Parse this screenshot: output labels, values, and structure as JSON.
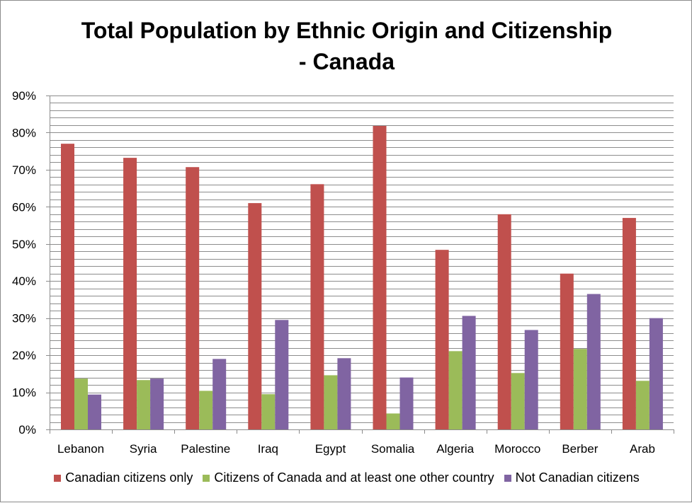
{
  "chart_data": {
    "type": "bar",
    "title_line1": "Total Population by Ethnic Origin and Citizenship",
    "title_line2": "- Canada",
    "categories": [
      "Lebanon",
      "Syria",
      "Palestine",
      "Iraq",
      "Egypt",
      "Somalia",
      "Algeria",
      "Morocco",
      "Berber",
      "Arab"
    ],
    "series": [
      {
        "name": "Canadian citizens only",
        "color": "#c0504d",
        "values": [
          77.0,
          73.2,
          70.7,
          61.0,
          66.1,
          81.8,
          48.4,
          58.0,
          42.0,
          57.0
        ]
      },
      {
        "name": "Citizens of Canada and at least one other country",
        "color": "#9bbb59",
        "values": [
          13.7,
          13.3,
          10.4,
          9.5,
          14.6,
          4.3,
          21.1,
          15.2,
          21.7,
          13.1
        ]
      },
      {
        "name": "Not Canadian citizens",
        "color": "#8064a2",
        "values": [
          9.4,
          13.7,
          19.0,
          29.5,
          19.2,
          14.0,
          30.6,
          26.8,
          36.5,
          30.0
        ]
      }
    ],
    "yticks": [
      "0%",
      "10%",
      "20%",
      "30%",
      "40%",
      "50%",
      "60%",
      "70%",
      "80%",
      "90%"
    ],
    "ylim": [
      0,
      90
    ],
    "minor_gridline_step": 2,
    "grid": true,
    "legend_position": "bottom"
  }
}
